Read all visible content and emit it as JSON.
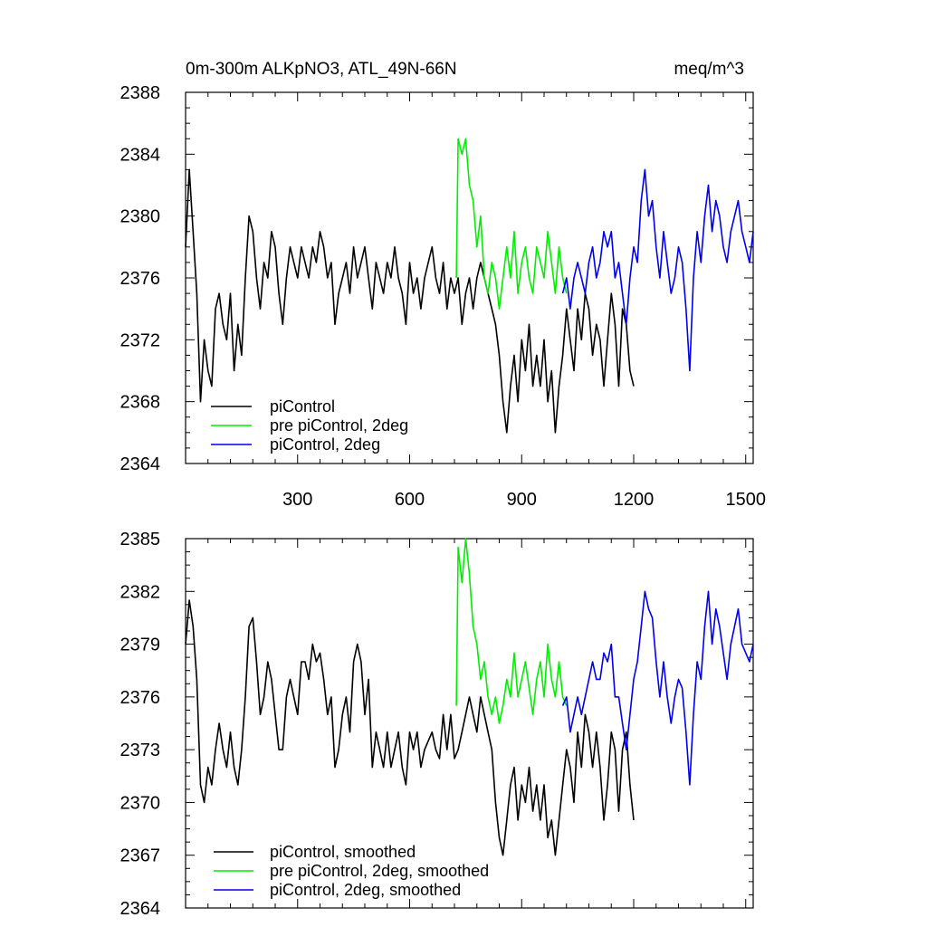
{
  "chart_data": [
    {
      "type": "line",
      "title_left": "0m-300m ALKpNO3, ATL_49N-66N",
      "title_right": "meq/m^3",
      "xlabel": "",
      "ylabel": "",
      "xlim": [
        0,
        1520
      ],
      "ylim": [
        2364,
        2388
      ],
      "xticks": [
        300,
        600,
        900,
        1200,
        1500
      ],
      "xtick_labels": [
        "300",
        "600",
        "900",
        "1200",
        "1500"
      ],
      "yticks": [
        2364,
        2368,
        2372,
        2376,
        2380,
        2384,
        2388
      ],
      "ytick_labels": [
        "2364",
        "2368",
        "2372",
        "2376",
        "2380",
        "2384",
        "2388"
      ],
      "legend_position": "bottom-left",
      "series": [
        {
          "name": "piControl",
          "color": "#000000",
          "x": [
            0,
            10,
            20,
            30,
            40,
            50,
            60,
            70,
            80,
            90,
            100,
            110,
            120,
            130,
            140,
            150,
            160,
            170,
            180,
            190,
            200,
            210,
            220,
            230,
            240,
            250,
            260,
            270,
            280,
            290,
            300,
            310,
            320,
            330,
            340,
            350,
            360,
            370,
            380,
            390,
            400,
            410,
            420,
            430,
            440,
            450,
            460,
            470,
            480,
            490,
            500,
            510,
            520,
            530,
            540,
            550,
            560,
            570,
            580,
            590,
            600,
            610,
            620,
            630,
            640,
            650,
            660,
            670,
            680,
            690,
            700,
            710,
            720,
            730,
            740,
            750,
            760,
            770,
            780,
            790,
            800,
            810,
            820,
            830,
            840,
            850,
            860,
            870,
            880,
            890,
            900,
            910,
            920,
            930,
            940,
            950,
            960,
            970,
            980,
            990,
            1000,
            1010,
            1020,
            1030,
            1040,
            1050,
            1060,
            1070,
            1080,
            1090,
            1100,
            1110,
            1120,
            1130,
            1140,
            1150,
            1160,
            1170,
            1180,
            1190,
            1200
          ],
          "y": [
            2378,
            2383,
            2379,
            2375,
            2368,
            2372,
            2370,
            2369,
            2374,
            2375,
            2373,
            2372,
            2375,
            2370,
            2373,
            2371,
            2376,
            2380,
            2379,
            2376,
            2374,
            2377,
            2376,
            2379,
            2378,
            2375,
            2373,
            2376,
            2378,
            2377,
            2376,
            2378,
            2377,
            2376,
            2378,
            2377,
            2379,
            2378,
            2376,
            2377,
            2373,
            2375,
            2376,
            2377,
            2375,
            2378,
            2376,
            2377,
            2378,
            2376,
            2374,
            2377,
            2376,
            2375,
            2377,
            2376,
            2378,
            2376,
            2375,
            2373,
            2377,
            2375,
            2376,
            2374,
            2376,
            2377,
            2378,
            2376,
            2375,
            2377,
            2374,
            2376,
            2375,
            2376,
            2373,
            2375,
            2376,
            2374,
            2376,
            2377,
            2376,
            2375,
            2374,
            2373,
            2371,
            2368,
            2366,
            2369,
            2371,
            2368,
            2372,
            2370,
            2373,
            2369,
            2371,
            2369,
            2372,
            2368,
            2370,
            2366,
            2369,
            2371,
            2374,
            2372,
            2370,
            2374,
            2372,
            2375,
            2374,
            2371,
            2373,
            2372,
            2369,
            2372,
            2375,
            2373,
            2369,
            2374,
            2373,
            2370,
            2369
          ]
        },
        {
          "name": "pre piControl, 2deg",
          "color": "#00ee00",
          "x": [
            725,
            730,
            740,
            750,
            760,
            770,
            780,
            790,
            800,
            810,
            820,
            830,
            840,
            850,
            860,
            870,
            880,
            890,
            900,
            910,
            920,
            930,
            940,
            950,
            960,
            970,
            980,
            990,
            1000,
            1010,
            1020
          ],
          "y": [
            2376,
            2385,
            2384,
            2385,
            2382,
            2381,
            2378,
            2380,
            2376,
            2375,
            2377,
            2376,
            2374,
            2376,
            2378,
            2376,
            2379,
            2375,
            2377,
            2378,
            2376,
            2375,
            2378,
            2377,
            2376,
            2379,
            2377,
            2375,
            2378,
            2376,
            2375
          ]
        },
        {
          "name": "piControl, 2deg",
          "color": "#0000ee",
          "x": [
            1010,
            1020,
            1030,
            1040,
            1050,
            1060,
            1070,
            1080,
            1090,
            1100,
            1110,
            1120,
            1130,
            1140,
            1150,
            1160,
            1170,
            1180,
            1190,
            1200,
            1210,
            1220,
            1230,
            1240,
            1250,
            1260,
            1270,
            1280,
            1290,
            1300,
            1310,
            1320,
            1330,
            1340,
            1350,
            1360,
            1370,
            1380,
            1390,
            1400,
            1410,
            1420,
            1430,
            1440,
            1450,
            1460,
            1470,
            1480,
            1490,
            1500,
            1510,
            1520
          ],
          "y": [
            2375,
            2376,
            2374,
            2376,
            2377,
            2376,
            2375,
            2377,
            2378,
            2376,
            2377,
            2379,
            2378,
            2379,
            2376,
            2377,
            2375,
            2373,
            2376,
            2378,
            2377,
            2381,
            2383,
            2380,
            2381,
            2378,
            2376,
            2379,
            2377,
            2375,
            2376,
            2378,
            2377,
            2374,
            2370,
            2376,
            2379,
            2377,
            2380,
            2382,
            2379,
            2381,
            2380,
            2378,
            2377,
            2379,
            2380,
            2381,
            2379,
            2378,
            2377,
            2379
          ]
        }
      ]
    },
    {
      "type": "line",
      "title_left": "",
      "title_right": "",
      "xlabel": "",
      "ylabel": "",
      "xlim": [
        0,
        1520
      ],
      "ylim": [
        2364,
        2385
      ],
      "xticks": [
        300,
        600,
        900,
        1200,
        1500
      ],
      "xtick_labels": [],
      "yticks": [
        2364,
        2367,
        2370,
        2373,
        2376,
        2379,
        2382,
        2385
      ],
      "ytick_labels": [
        "2364",
        "2367",
        "2370",
        "2373",
        "2376",
        "2379",
        "2382",
        "2385"
      ],
      "legend_position": "bottom-left",
      "series": [
        {
          "name": "piControl, smoothed",
          "color": "#000000",
          "x": [
            0,
            10,
            20,
            30,
            40,
            50,
            60,
            70,
            80,
            90,
            100,
            110,
            120,
            130,
            140,
            150,
            160,
            170,
            180,
            190,
            200,
            210,
            220,
            230,
            240,
            250,
            260,
            270,
            280,
            290,
            300,
            310,
            320,
            330,
            340,
            350,
            360,
            370,
            380,
            390,
            400,
            410,
            420,
            430,
            440,
            450,
            460,
            470,
            480,
            490,
            500,
            510,
            520,
            530,
            540,
            550,
            560,
            570,
            580,
            590,
            600,
            610,
            620,
            630,
            640,
            650,
            660,
            670,
            680,
            690,
            700,
            710,
            720,
            730,
            740,
            750,
            760,
            770,
            780,
            790,
            800,
            810,
            820,
            830,
            840,
            850,
            860,
            870,
            880,
            890,
            900,
            910,
            920,
            930,
            940,
            950,
            960,
            970,
            980,
            990,
            1000,
            1010,
            1020,
            1030,
            1040,
            1050,
            1060,
            1070,
            1080,
            1090,
            1100,
            1110,
            1120,
            1130,
            1140,
            1150,
            1160,
            1170,
            1180,
            1190,
            1200
          ],
          "y": [
            2379,
            2381.5,
            2380,
            2377,
            2371,
            2370,
            2372,
            2371,
            2373,
            2374.5,
            2373,
            2372,
            2374,
            2372,
            2371,
            2373,
            2376,
            2380,
            2380.5,
            2378,
            2375,
            2376,
            2378,
            2377,
            2375,
            2373,
            2373,
            2376,
            2377,
            2376,
            2375,
            2378,
            2378,
            2377,
            2379,
            2378,
            2378.5,
            2377,
            2375,
            2376,
            2372,
            2373,
            2375,
            2376,
            2374,
            2378,
            2379,
            2378,
            2375,
            2377,
            2372,
            2374,
            2373,
            2372,
            2374,
            2372,
            2373,
            2374,
            2372,
            2371,
            2374,
            2373,
            2374,
            2372,
            2373,
            2373.5,
            2374,
            2373,
            2372.5,
            2375,
            2373,
            2375,
            2372.5,
            2373,
            2374,
            2375,
            2376,
            2375,
            2374,
            2376,
            2375,
            2374,
            2373,
            2370,
            2368,
            2367,
            2369,
            2371,
            2372,
            2369,
            2371,
            2370,
            2372,
            2369.5,
            2371,
            2369,
            2371,
            2368,
            2369,
            2367,
            2369,
            2371,
            2373,
            2372,
            2370,
            2374,
            2372,
            2375,
            2374,
            2372,
            2374,
            2372,
            2369,
            2371,
            2374,
            2373,
            2369.5,
            2373,
            2374,
            2371,
            2369
          ]
        },
        {
          "name": "pre piControl, 2deg, smoothed",
          "color": "#00ee00",
          "x": [
            725,
            730,
            740,
            750,
            760,
            770,
            780,
            790,
            800,
            810,
            820,
            830,
            840,
            850,
            860,
            870,
            880,
            890,
            900,
            910,
            920,
            930,
            940,
            950,
            960,
            970,
            980,
            990,
            1000,
            1010,
            1020
          ],
          "y": [
            2375.5,
            2384.5,
            2382.5,
            2385,
            2383,
            2380,
            2379,
            2377,
            2378,
            2376,
            2375,
            2376,
            2374.5,
            2375.5,
            2377,
            2376,
            2378.5,
            2376,
            2377,
            2378,
            2376.5,
            2375,
            2377,
            2378,
            2376,
            2379,
            2377,
            2376,
            2378,
            2376,
            2375.5
          ]
        },
        {
          "name": "piControl, 2deg, smoothed",
          "color": "#0000ee",
          "x": [
            1010,
            1020,
            1030,
            1040,
            1050,
            1060,
            1070,
            1080,
            1090,
            1100,
            1110,
            1120,
            1130,
            1140,
            1150,
            1160,
            1170,
            1180,
            1190,
            1200,
            1210,
            1220,
            1230,
            1240,
            1250,
            1260,
            1270,
            1280,
            1290,
            1300,
            1310,
            1320,
            1330,
            1340,
            1350,
            1360,
            1370,
            1380,
            1390,
            1400,
            1410,
            1420,
            1430,
            1440,
            1450,
            1460,
            1470,
            1480,
            1490,
            1500,
            1510,
            1520
          ],
          "y": [
            2375.5,
            2376,
            2374,
            2375,
            2376,
            2375,
            2376,
            2377,
            2378,
            2377,
            2377,
            2378.5,
            2378,
            2379,
            2376,
            2376,
            2374.5,
            2373,
            2375,
            2377,
            2378,
            2380,
            2382,
            2381,
            2380.5,
            2378,
            2376,
            2378,
            2376,
            2374.5,
            2376,
            2377,
            2376.5,
            2374,
            2371,
            2375,
            2378,
            2377,
            2380,
            2382,
            2379,
            2381,
            2380,
            2378.5,
            2377,
            2379,
            2380,
            2381,
            2379,
            2378.5,
            2378,
            2379
          ]
        }
      ]
    }
  ]
}
